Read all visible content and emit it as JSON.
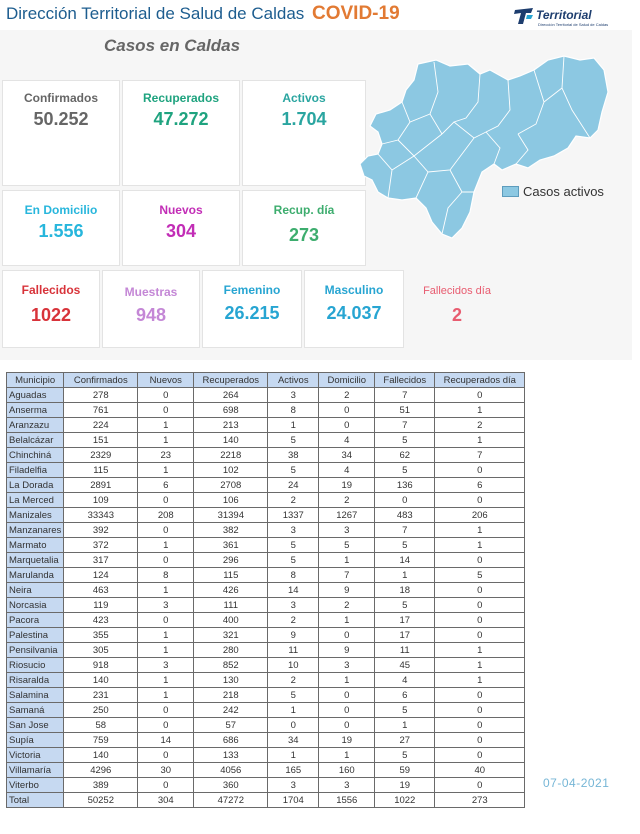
{
  "header": {
    "organization": "Dirección Territorial de Salud de Caldas",
    "topic": "COVID-19",
    "logo_text": "Territorial",
    "logo_subtext": "Dirección Territorial de Salud de Caldas"
  },
  "section_title": "Casos en Caldas",
  "cards": {
    "confirmados": {
      "label": "Confirmados",
      "value": "50.252"
    },
    "recuperados": {
      "label": "Recuperados",
      "value": "47.272"
    },
    "activos": {
      "label": "Activos",
      "value": "1.704"
    },
    "en_domicilio": {
      "label": "En Domicilio",
      "value": "1.556"
    },
    "nuevos": {
      "label": "Nuevos",
      "value": "304"
    },
    "recup_dia": {
      "label": "Recup. día",
      "value": "273"
    },
    "fallecidos": {
      "label": "Fallecidos",
      "value": "1022"
    },
    "muestras": {
      "label": "Muestras",
      "value": "948"
    },
    "femenino": {
      "label": "Femenino",
      "value": "26.215"
    },
    "masculino": {
      "label": "Masculino",
      "value": "24.037"
    },
    "fallecidos_dia": {
      "label": "Fallecidos día",
      "value": "2"
    }
  },
  "map": {
    "legend_label": "Casos activos"
  },
  "colors": {
    "header_blue": "#1d5d8f",
    "covid_orange": "#e27a33",
    "confirmados": "#666666",
    "recuperados": "#1fa37f",
    "activos": "#2aa5a0",
    "domicilio": "#27b6dc",
    "nuevos": "#c22db6",
    "recup_dia": "#3dad6e",
    "fallecidos": "#d8333a",
    "muestras": "#c487d6",
    "femenino": "#27a5d2",
    "masculino": "#27a5d2",
    "fallecidos_dia": "#e85c70",
    "map_fill": "#8cc8e2",
    "table_header": "#c6d9f1"
  },
  "table": {
    "headers": [
      "Municipio",
      "Confirmados",
      "Nuevos",
      "Recuperados",
      "Activos",
      "Domicilio",
      "Fallecidos",
      "Recuperados día"
    ],
    "rows": [
      [
        "Aguadas",
        "278",
        "0",
        "264",
        "3",
        "2",
        "7",
        "0"
      ],
      [
        "Anserma",
        "761",
        "0",
        "698",
        "8",
        "0",
        "51",
        "1"
      ],
      [
        "Aranzazu",
        "224",
        "1",
        "213",
        "1",
        "0",
        "7",
        "2"
      ],
      [
        "Belalcázar",
        "151",
        "1",
        "140",
        "5",
        "4",
        "5",
        "1"
      ],
      [
        "Chinchiná",
        "2329",
        "23",
        "2218",
        "38",
        "34",
        "62",
        "7"
      ],
      [
        "Filadelfia",
        "115",
        "1",
        "102",
        "5",
        "4",
        "5",
        "0"
      ],
      [
        "La Dorada",
        "2891",
        "6",
        "2708",
        "24",
        "19",
        "136",
        "6"
      ],
      [
        "La Merced",
        "109",
        "0",
        "106",
        "2",
        "2",
        "0",
        "0"
      ],
      [
        "Manizales",
        "33343",
        "208",
        "31394",
        "1337",
        "1267",
        "483",
        "206"
      ],
      [
        "Manzanares",
        "392",
        "0",
        "382",
        "3",
        "3",
        "7",
        "1"
      ],
      [
        "Marmato",
        "372",
        "1",
        "361",
        "5",
        "5",
        "5",
        "1"
      ],
      [
        "Marquetalia",
        "317",
        "0",
        "296",
        "5",
        "1",
        "14",
        "0"
      ],
      [
        "Marulanda",
        "124",
        "8",
        "115",
        "8",
        "7",
        "1",
        "5"
      ],
      [
        "Neira",
        "463",
        "1",
        "426",
        "14",
        "9",
        "18",
        "0"
      ],
      [
        "Norcasia",
        "119",
        "3",
        "111",
        "3",
        "2",
        "5",
        "0"
      ],
      [
        "Pacora",
        "423",
        "0",
        "400",
        "2",
        "1",
        "17",
        "0"
      ],
      [
        "Palestina",
        "355",
        "1",
        "321",
        "9",
        "0",
        "17",
        "0"
      ],
      [
        "Pensilvania",
        "305",
        "1",
        "280",
        "11",
        "9",
        "11",
        "1"
      ],
      [
        "Riosucio",
        "918",
        "3",
        "852",
        "10",
        "3",
        "45",
        "1"
      ],
      [
        "Risaralda",
        "140",
        "1",
        "130",
        "2",
        "1",
        "4",
        "1"
      ],
      [
        "Salamina",
        "231",
        "1",
        "218",
        "5",
        "0",
        "6",
        "0"
      ],
      [
        "Samaná",
        "250",
        "0",
        "242",
        "1",
        "0",
        "5",
        "0"
      ],
      [
        "San Jose",
        "58",
        "0",
        "57",
        "0",
        "0",
        "1",
        "0"
      ],
      [
        "Supía",
        "759",
        "14",
        "686",
        "34",
        "19",
        "27",
        "0"
      ],
      [
        "Victoria",
        "140",
        "0",
        "133",
        "1",
        "1",
        "5",
        "0"
      ],
      [
        "Villamaría",
        "4296",
        "30",
        "4056",
        "165",
        "160",
        "59",
        "40"
      ],
      [
        "Viterbo",
        "389",
        "0",
        "360",
        "3",
        "3",
        "19",
        "0"
      ]
    ],
    "total": [
      "Total",
      "50252",
      "304",
      "47272",
      "1704",
      "1556",
      "1022",
      "273"
    ]
  },
  "date": "07-04-2021"
}
